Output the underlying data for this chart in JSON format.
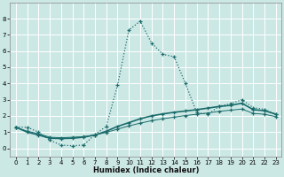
{
  "xlabel": "Humidex (Indice chaleur)",
  "background_color": "#cce8e5",
  "grid_color": "#b8d8d5",
  "line_color": "#1a6b6b",
  "xlim": [
    -0.5,
    23.5
  ],
  "ylim": [
    -0.5,
    9.0
  ],
  "yticks": [
    0,
    1,
    2,
    3,
    4,
    5,
    6,
    7,
    8
  ],
  "xticks": [
    0,
    1,
    2,
    3,
    4,
    5,
    6,
    7,
    8,
    9,
    10,
    11,
    12,
    13,
    14,
    15,
    16,
    17,
    18,
    19,
    20,
    21,
    22,
    23
  ],
  "line1_x": [
    0,
    1,
    2,
    3,
    4,
    5,
    6,
    7,
    8,
    9,
    10,
    11,
    12,
    13,
    14,
    15,
    16,
    17,
    18,
    19,
    20,
    21,
    22,
    23
  ],
  "line1_y": [
    1.3,
    1.3,
    1.0,
    0.5,
    0.2,
    0.15,
    0.2,
    0.85,
    1.35,
    3.9,
    7.3,
    7.85,
    6.5,
    5.8,
    5.65,
    4.0,
    2.2,
    2.1,
    2.6,
    2.75,
    3.0,
    2.5,
    2.4,
    2.1
  ],
  "line2_x": [
    0,
    1,
    2,
    3,
    4,
    5,
    6,
    7,
    8,
    9,
    10,
    11,
    12,
    13,
    14,
    15,
    16,
    17,
    18,
    19,
    20,
    21,
    22,
    23
  ],
  "line2_y": [
    1.3,
    1.0,
    0.82,
    0.62,
    0.6,
    0.62,
    0.68,
    0.82,
    1.05,
    1.35,
    1.58,
    1.82,
    2.0,
    2.12,
    2.22,
    2.3,
    2.38,
    2.48,
    2.58,
    2.65,
    2.78,
    2.38,
    2.32,
    2.1
  ],
  "line3_x": [
    0,
    1,
    2,
    3,
    4,
    5,
    6,
    7,
    8,
    9,
    10,
    11,
    12,
    13,
    14,
    15,
    16,
    17,
    18,
    19,
    20,
    21,
    22,
    23
  ],
  "line3_y": [
    1.3,
    1.05,
    0.9,
    0.68,
    0.65,
    0.68,
    0.72,
    0.82,
    0.98,
    1.18,
    1.38,
    1.55,
    1.7,
    1.82,
    1.92,
    2.02,
    2.1,
    2.18,
    2.28,
    2.35,
    2.42,
    2.15,
    2.1,
    1.95
  ]
}
